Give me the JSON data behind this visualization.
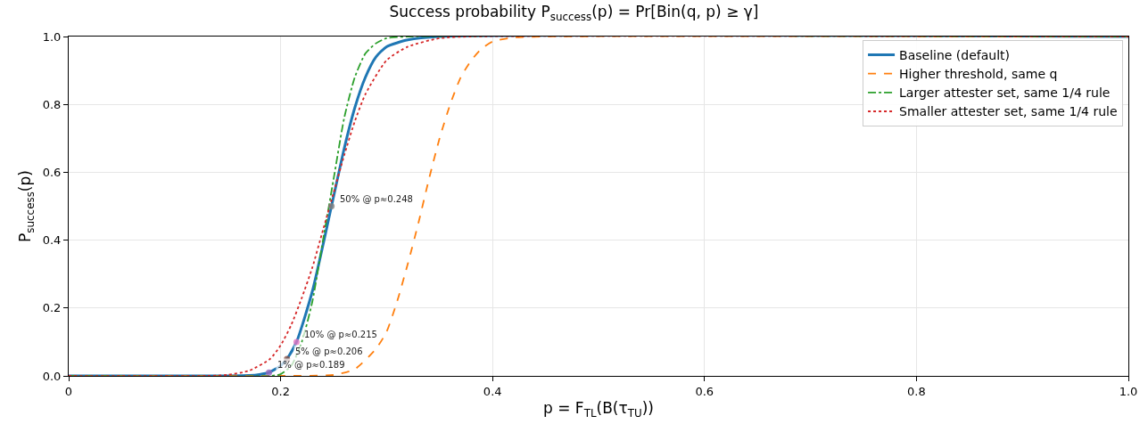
{
  "chart_data": {
    "type": "line",
    "title": "Success probability P$_{success}$(p) = Pr[Bin(q, p) ≥ γ]",
    "xlabel": "p = F$_{TL}$(B(τ$_{TU}$))",
    "ylabel": "P$_{success}$(p)",
    "xlim": [
      0,
      1
    ],
    "ylim": [
      0,
      1
    ],
    "xticks": [
      0,
      {
        "value": 0.2,
        "label": "0.2"
      },
      {
        "value": 0.4,
        "label": "0.4"
      },
      {
        "value": 0.6,
        "label": "0.6"
      },
      {
        "value": 0.8,
        "label": "0.8"
      },
      {
        "value": 1,
        "label": "1.0"
      }
    ],
    "yticks": [
      {
        "value": 0,
        "label": "0.0"
      },
      {
        "value": 0.2,
        "label": "0.2"
      },
      {
        "value": 0.4,
        "label": "0.4"
      },
      {
        "value": 0.6,
        "label": "0.6"
      },
      {
        "value": 0.8,
        "label": "0.8"
      },
      {
        "value": 1,
        "label": "1.0"
      }
    ],
    "grid": true,
    "legend": "top right",
    "series": [
      {
        "name": "Baseline (default)",
        "color": "#1f77b4",
        "line_style": "solid",
        "x": [
          0,
          0.15,
          0.17,
          0.18,
          0.189,
          0.2,
          0.206,
          0.215,
          0.23,
          0.248,
          0.26,
          0.27,
          0.28,
          0.29,
          0.3,
          0.32,
          0.35,
          1.0
        ],
        "values": [
          0,
          0,
          0.001,
          0.004,
          0.01,
          0.03,
          0.05,
          0.1,
          0.25,
          0.5,
          0.67,
          0.79,
          0.88,
          0.94,
          0.97,
          0.99,
          1.0,
          1.0
        ]
      },
      {
        "name": "Higher threshold, same q",
        "color": "#ff7f0e",
        "line_style": "dashed",
        "x": [
          0,
          0.2,
          0.25,
          0.27,
          0.29,
          0.3,
          0.31,
          0.32,
          0.33,
          0.34,
          0.35,
          0.36,
          0.37,
          0.38,
          0.39,
          0.4,
          0.42,
          0.45,
          1.0
        ],
        "values": [
          0,
          0,
          0.003,
          0.02,
          0.08,
          0.13,
          0.22,
          0.33,
          0.45,
          0.58,
          0.7,
          0.8,
          0.88,
          0.93,
          0.965,
          0.985,
          0.997,
          1.0,
          1.0
        ]
      },
      {
        "name": "Larger attester set, same 1/4 rule",
        "color": "#2ca02c",
        "line_style": "dashdot",
        "x": [
          0,
          0.19,
          0.2,
          0.21,
          0.22,
          0.23,
          0.24,
          0.25,
          0.26,
          0.27,
          0.28,
          0.29,
          0.3,
          0.32,
          1.0
        ],
        "values": [
          0,
          0,
          0.005,
          0.03,
          0.1,
          0.22,
          0.4,
          0.58,
          0.76,
          0.88,
          0.95,
          0.98,
          0.995,
          1.0,
          1.0
        ]
      },
      {
        "name": "Smaller attester set, same 1/4 rule",
        "color": "#d62728",
        "line_style": "dotted",
        "x": [
          0,
          0.13,
          0.15,
          0.17,
          0.19,
          0.2,
          0.21,
          0.22,
          0.23,
          0.24,
          0.25,
          0.26,
          0.27,
          0.28,
          0.3,
          0.32,
          0.35,
          0.38,
          1.0
        ],
        "values": [
          0,
          0,
          0.003,
          0.015,
          0.05,
          0.09,
          0.15,
          0.23,
          0.32,
          0.43,
          0.54,
          0.65,
          0.75,
          0.83,
          0.93,
          0.97,
          0.995,
          1.0,
          1.0
        ]
      },
      {
        "type": "scatter",
        "marker": "circle",
        "color": "#9467bd",
        "x": [
          0.189
        ],
        "values": [
          0.01
        ]
      },
      {
        "type": "scatter",
        "marker": "circle",
        "color": "#8c564b",
        "x": [
          0.206
        ],
        "values": [
          0.05
        ]
      },
      {
        "type": "scatter",
        "marker": "circle",
        "color": "#e377c2",
        "x": [
          0.215
        ],
        "values": [
          0.1
        ]
      },
      {
        "type": "scatter",
        "marker": "circle",
        "color": "#7f7f7f",
        "x": [
          0.248
        ],
        "values": [
          0.5
        ]
      }
    ],
    "annotations": [
      {
        "text": "1% @ p≈0.189",
        "x": 0.189,
        "y": 0.01
      },
      {
        "text": "5% @ p≈0.206",
        "x": 0.206,
        "y": 0.05
      },
      {
        "text": "10% @ p≈0.215",
        "x": 0.215,
        "y": 0.1
      },
      {
        "text": "50% @ p≈0.248",
        "x": 0.248,
        "y": 0.5
      }
    ]
  }
}
